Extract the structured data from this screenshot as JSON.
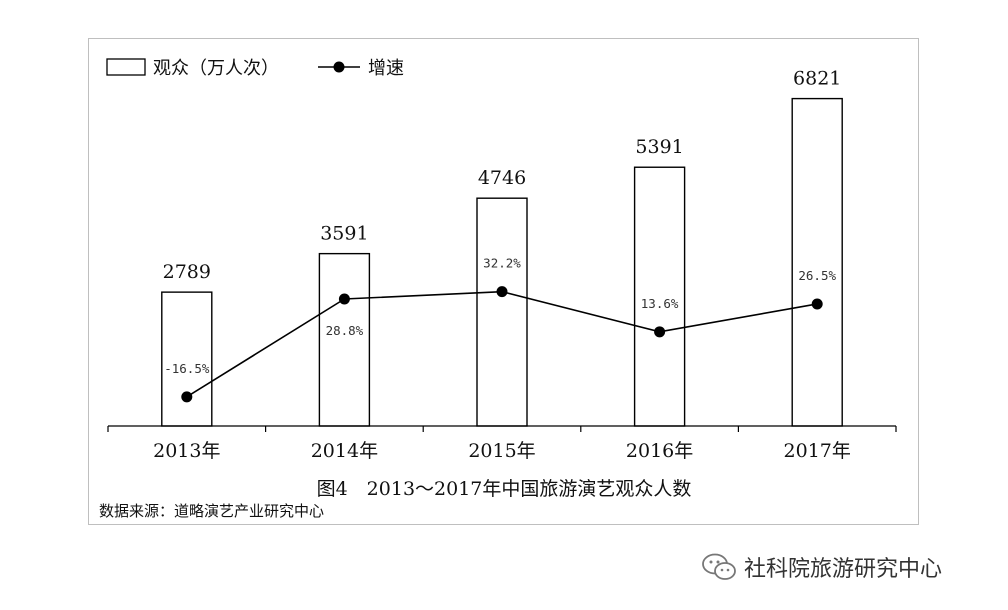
{
  "chart_data": {
    "type": "bar",
    "categories": [
      "2013年",
      "2014年",
      "2015年",
      "2016年",
      "2017年"
    ],
    "series": [
      {
        "name": "观众（万人次）",
        "type": "bar",
        "values": [
          2789,
          3591,
          4746,
          5391,
          6821
        ],
        "color": "#ffffff",
        "stroke": "#000000"
      },
      {
        "name": "增速",
        "type": "line",
        "values": [
          -16.5,
          28.8,
          32.2,
          13.6,
          26.5
        ],
        "labels": [
          "-16.5%",
          "28.8%",
          "32.2%",
          "13.6%",
          "26.5%"
        ],
        "color": "#000000",
        "ylim": [
          -30,
          120
        ]
      }
    ],
    "ylim": [
      0,
      7500
    ],
    "grid": false,
    "legend_position": "top-left"
  },
  "caption": "图4　2013～2017年中国旅游演艺观众人数",
  "source": "数据来源：道略演艺产业研究中心",
  "watermark": {
    "text": "社科院旅游研究中心",
    "icon": "wechat-icon"
  }
}
